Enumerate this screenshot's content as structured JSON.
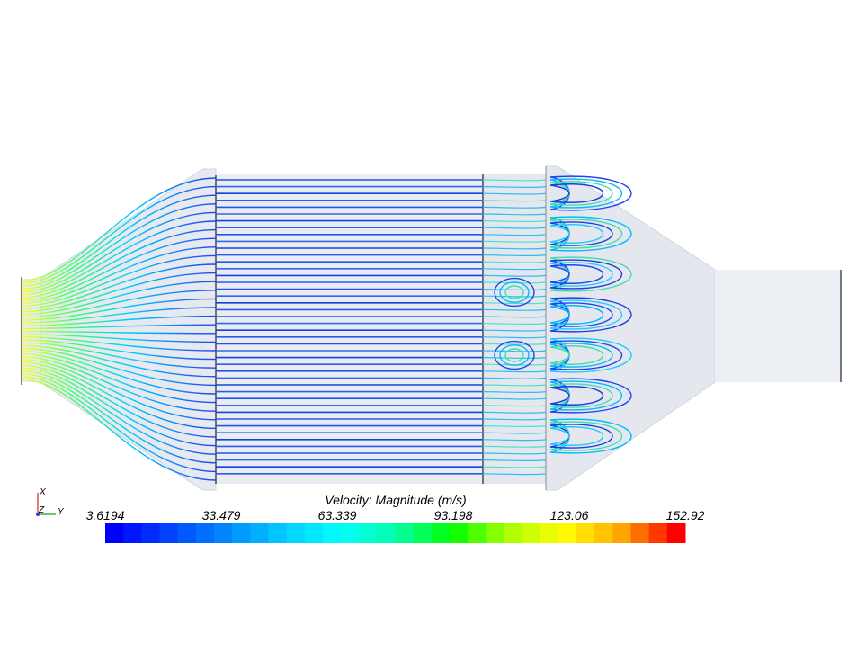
{
  "legend": {
    "title": "Velocity: Magnitude (m/s)",
    "ticks": [
      "3.6194",
      "33.479",
      "63.339",
      "93.198",
      "123.06",
      "152.92"
    ],
    "min": 3.6194,
    "max": 152.92,
    "colormap": [
      "#0000ff",
      "#0044ff",
      "#0088ff",
      "#00ccff",
      "#00ffff",
      "#00ffaa",
      "#00ff00",
      "#aaff00",
      "#ffff00",
      "#ffaa00",
      "#ff0000"
    ]
  },
  "axes_triad": {
    "x": "X",
    "y": "Y",
    "z": "Z"
  },
  "colors": {
    "housing": "#e6eaf0",
    "housing_edge": "#c8cdd6",
    "substrate": "#3355ee"
  }
}
